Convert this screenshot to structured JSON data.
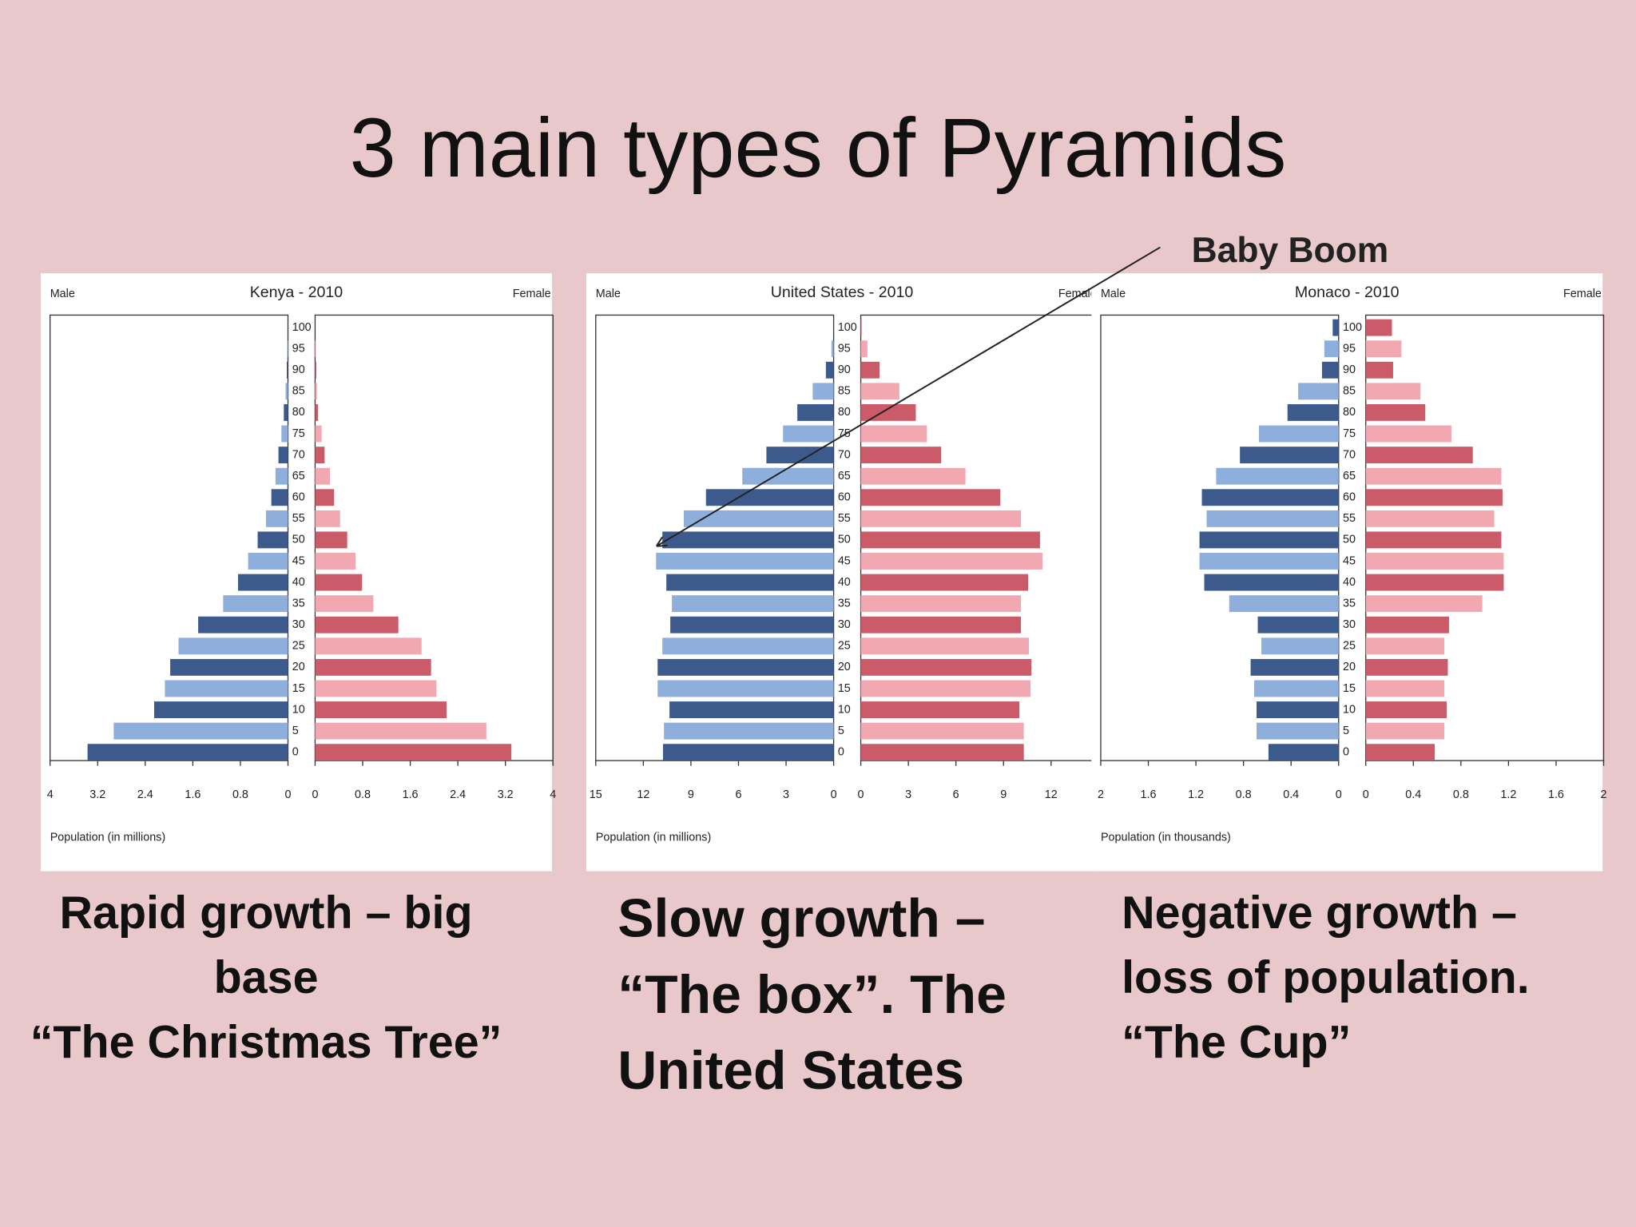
{
  "title": "3 main types of Pyramids",
  "annotation": "Baby Boom",
  "captions": [
    [
      "Rapid growth – big",
      "base",
      "“The Christmas Tree”"
    ],
    [
      "Slow growth –",
      "“The box”. The",
      "United States"
    ],
    [
      "Negative growth –",
      "loss of population.",
      "“The Cup”"
    ]
  ],
  "chart_data": [
    {
      "type": "pyramid",
      "title": "Kenya - 2010",
      "xlabel": "Population (in millions)",
      "categories": [
        "0",
        "5",
        "10",
        "15",
        "20",
        "25",
        "30",
        "35",
        "40",
        "45",
        "50",
        "55",
        "60",
        "65",
        "70",
        "75",
        "80",
        "85",
        "90",
        "95",
        "100"
      ],
      "series": [
        {
          "name": "Male",
          "colors": [
            "#3d5a8c",
            "#8eaedb"
          ],
          "values": [
            3.37,
            2.93,
            2.25,
            2.07,
            1.98,
            1.84,
            1.51,
            1.09,
            0.84,
            0.67,
            0.51,
            0.37,
            0.28,
            0.21,
            0.16,
            0.11,
            0.07,
            0.04,
            0.02,
            0.01,
            0
          ]
        },
        {
          "name": "Female",
          "colors": [
            "#cc5b69",
            "#f1a8b1"
          ],
          "values": [
            3.3,
            2.88,
            2.21,
            2.04,
            1.95,
            1.79,
            1.4,
            0.98,
            0.79,
            0.68,
            0.54,
            0.42,
            0.32,
            0.25,
            0.16,
            0.11,
            0.05,
            0.03,
            0.02,
            0.01,
            0
          ]
        }
      ],
      "xlim": [
        0,
        4
      ],
      "xticks": [
        0,
        0.8,
        1.6,
        2.4,
        3.2,
        4
      ]
    },
    {
      "type": "pyramid",
      "title": "United States - 2010",
      "xlabel": "Population (in millions)",
      "categories": [
        "0",
        "5",
        "10",
        "15",
        "20",
        "25",
        "30",
        "35",
        "40",
        "45",
        "50",
        "55",
        "60",
        "65",
        "70",
        "75",
        "80",
        "85",
        "90",
        "95",
        "100"
      ],
      "series": [
        {
          "name": "Male",
          "colors": [
            "#3d5a8c",
            "#8eaedb"
          ],
          "values": [
            10.76,
            10.7,
            10.35,
            11.1,
            11.1,
            10.8,
            10.3,
            10.2,
            10.55,
            11.2,
            10.8,
            9.45,
            8.05,
            5.76,
            4.24,
            3.19,
            2.29,
            1.32,
            0.49,
            0.14,
            0.01
          ]
        },
        {
          "name": "Female",
          "colors": [
            "#cc5b69",
            "#f1a8b1"
          ],
          "values": [
            10.28,
            10.28,
            10.0,
            10.7,
            10.76,
            10.6,
            10.1,
            10.1,
            10.55,
            11.46,
            11.3,
            10.1,
            8.8,
            6.6,
            5.07,
            4.17,
            3.47,
            2.43,
            1.18,
            0.42,
            0.05
          ]
        }
      ],
      "xlim": [
        0,
        15
      ],
      "xticks": [
        0,
        3,
        6,
        9,
        12,
        15
      ]
    },
    {
      "type": "pyramid",
      "title": "Monaco - 2010",
      "xlabel": "Population (in thousands)",
      "categories": [
        "0",
        "5",
        "10",
        "15",
        "20",
        "25",
        "30",
        "35",
        "40",
        "45",
        "50",
        "55",
        "60",
        "65",
        "70",
        "75",
        "80",
        "85",
        "90",
        "95",
        "100"
      ],
      "series": [
        {
          "name": "Male",
          "colors": [
            "#3d5a8c",
            "#8eaedb"
          ],
          "values": [
            0.59,
            0.69,
            0.69,
            0.71,
            0.74,
            0.65,
            0.68,
            0.92,
            1.13,
            1.17,
            1.17,
            1.11,
            1.15,
            1.03,
            0.83,
            0.67,
            0.43,
            0.34,
            0.14,
            0.12,
            0.05
          ]
        },
        {
          "name": "Female",
          "colors": [
            "#cc5b69",
            "#f1a8b1"
          ],
          "values": [
            0.58,
            0.66,
            0.68,
            0.66,
            0.69,
            0.66,
            0.7,
            0.98,
            1.16,
            1.16,
            1.14,
            1.08,
            1.15,
            1.14,
            0.9,
            0.72,
            0.5,
            0.46,
            0.23,
            0.3,
            0.22
          ]
        }
      ],
      "xlim": [
        0,
        2
      ],
      "xticks": [
        0,
        0.4,
        0.8,
        1.2,
        1.6,
        2
      ]
    }
  ]
}
